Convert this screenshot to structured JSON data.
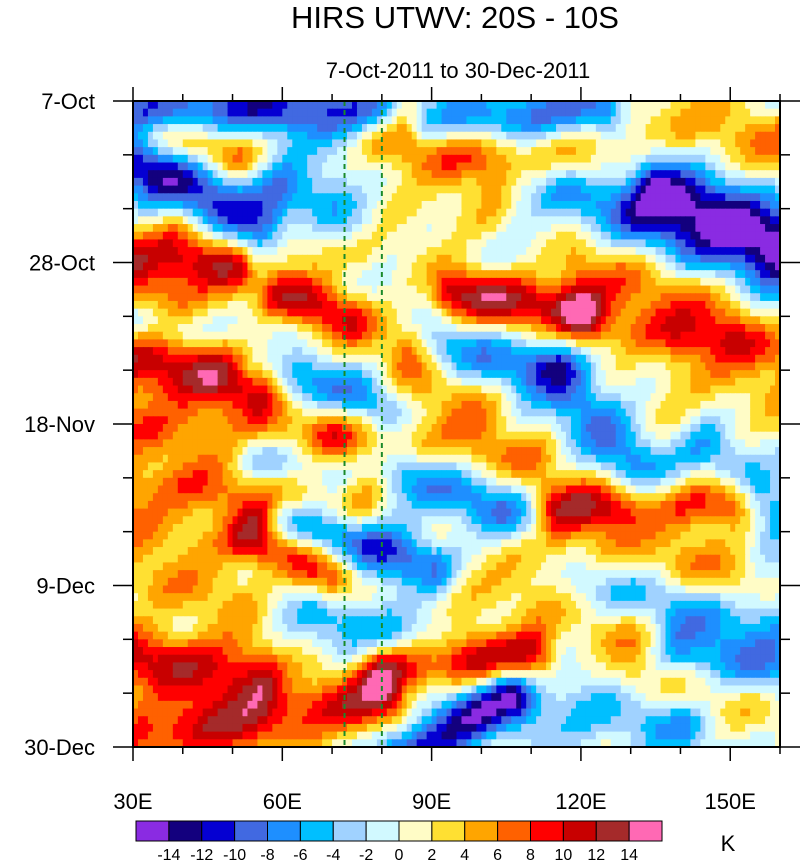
{
  "chart_data": {
    "type": "heatmap",
    "title": "HIRS UTWV: 20S - 10S",
    "subtitle": "7-Oct-2011 to 30-Dec-2011",
    "x_axis": {
      "range": [
        30,
        160
      ],
      "units": "degrees longitude East",
      "ticks": [
        {
          "value": 30,
          "label": "30E"
        },
        {
          "value": 60,
          "label": "60E"
        },
        {
          "value": 90,
          "label": "90E"
        },
        {
          "value": 120,
          "label": "120E"
        },
        {
          "value": 150,
          "label": "150E"
        }
      ]
    },
    "y_axis": {
      "range": [
        0,
        84
      ],
      "units": "days since 7-Oct-2011",
      "direction": "top-to-bottom",
      "ticks": [
        {
          "value": 0,
          "label": "7-Oct"
        },
        {
          "value": 21,
          "label": "28-Oct"
        },
        {
          "value": 42,
          "label": "18-Nov"
        },
        {
          "value": 63,
          "label": "9-Dec"
        },
        {
          "value": 84,
          "label": "30-Dec"
        }
      ]
    },
    "reference_lines": [
      {
        "lon": 72.5,
        "style": "dashed",
        "color": "#1a8a2a"
      },
      {
        "lon": 80,
        "style": "dashed",
        "color": "#1a8a2a"
      }
    ],
    "colorbar": {
      "unit": "K",
      "levels": [
        -14,
        -12,
        -10,
        -8,
        -6,
        -4,
        -2,
        0,
        2,
        4,
        6,
        8,
        10,
        12,
        14
      ],
      "colors": [
        "#8a2be2",
        "#13007e",
        "#0500d2",
        "#4169e1",
        "#1e8fff",
        "#00bfff",
        "#a0d2ff",
        "#d1f9ff",
        "#fffcc6",
        "#ffe032",
        "#ffa500",
        "#ff6100",
        "#ff0000",
        "#c80000",
        "#a52a2a",
        "#ff69b4"
      ],
      "labels": [
        "-14",
        "-12",
        "-10",
        "-8",
        "-6",
        "-4",
        "-2",
        "0",
        "2",
        "4",
        "6",
        "8",
        "10",
        "12",
        "14"
      ]
    },
    "bands": [
      {
        "lon0": 30,
        "day0": 1,
        "lon1": 80,
        "day1": 1,
        "width": 2.5,
        "amp": -10
      },
      {
        "lon0": 85,
        "day0": 3,
        "lon1": 120,
        "day1": 8,
        "width": 3,
        "amp": 6
      },
      {
        "lon0": 90,
        "day0": 3,
        "lon1": 125,
        "day1": 1,
        "width": 2.5,
        "amp": -10
      },
      {
        "lon0": 130,
        "day0": 2,
        "lon1": 160,
        "day1": 6,
        "width": 3,
        "amp": 5
      },
      {
        "lon0": 30,
        "day0": 8,
        "lon1": 55,
        "day1": 17,
        "width": 3,
        "amp": -13
      },
      {
        "lon0": 30,
        "day0": 4,
        "lon1": 50,
        "day1": 7,
        "width": 2,
        "amp": 6
      },
      {
        "lon0": 80,
        "day0": 6,
        "lon1": 110,
        "day1": 9,
        "width": 2.5,
        "amp": 4
      },
      {
        "lon0": 135,
        "day0": 11,
        "lon1": 160,
        "day1": 18,
        "width": 3,
        "amp": -14
      },
      {
        "lon0": 110,
        "day0": 10,
        "lon1": 160,
        "day1": 22,
        "width": 3,
        "amp": -7
      },
      {
        "lon0": 60,
        "day0": 11,
        "lon1": 75,
        "day1": 16,
        "width": 3,
        "amp": -8
      },
      {
        "lon0": 78,
        "day0": 13,
        "lon1": 100,
        "day1": 15,
        "width": 3,
        "amp": 3
      },
      {
        "lon0": 40,
        "day0": 16,
        "lon1": 75,
        "day1": 19,
        "width": 3,
        "amp": 5
      },
      {
        "lon0": 30,
        "day0": 20,
        "lon1": 50,
        "day1": 22,
        "width": 2.5,
        "amp": 10
      },
      {
        "lon0": 30,
        "day0": 24,
        "lon1": 60,
        "day1": 32,
        "width": 2.5,
        "amp": 6
      },
      {
        "lon0": 60,
        "day0": 25,
        "lon1": 85,
        "day1": 31,
        "width": 2.5,
        "amp": 10
      },
      {
        "lon0": 95,
        "day0": 25,
        "lon1": 120,
        "day1": 27,
        "width": 2.5,
        "amp": 12
      },
      {
        "lon0": 120,
        "day0": 22,
        "lon1": 150,
        "day1": 27,
        "width": 3,
        "amp": 5
      },
      {
        "lon0": 30,
        "day0": 29,
        "lon1": 60,
        "day1": 30,
        "width": 2,
        "amp": -5
      },
      {
        "lon0": 80,
        "day0": 30,
        "lon1": 115,
        "day1": 35,
        "width": 2.5,
        "amp": -6
      },
      {
        "lon0": 120,
        "day0": 29,
        "lon1": 160,
        "day1": 32,
        "width": 2.5,
        "amp": 7
      },
      {
        "lon0": 30,
        "day0": 34,
        "lon1": 55,
        "day1": 37,
        "width": 3,
        "amp": 12
      },
      {
        "lon0": 55,
        "day0": 34,
        "lon1": 80,
        "day1": 40,
        "width": 2.5,
        "amp": -7
      },
      {
        "lon0": 85,
        "day0": 35,
        "lon1": 100,
        "day1": 41,
        "width": 3,
        "amp": 4
      },
      {
        "lon0": 115,
        "day0": 34,
        "lon1": 135,
        "day1": 52,
        "width": 3,
        "amp": -7
      },
      {
        "lon0": 140,
        "day0": 35,
        "lon1": 160,
        "day1": 40,
        "width": 3,
        "amp": 4
      },
      {
        "lon0": 30,
        "day0": 42,
        "lon1": 70,
        "day1": 45,
        "width": 3,
        "amp": 6
      },
      {
        "lon0": 70,
        "day0": 42,
        "lon1": 110,
        "day1": 47,
        "width": 2.5,
        "amp": 5
      },
      {
        "lon0": 55,
        "day0": 46,
        "lon1": 70,
        "day1": 48,
        "width": 2.5,
        "amp": -6
      },
      {
        "lon0": 85,
        "day0": 49,
        "lon1": 110,
        "day1": 55,
        "width": 2.5,
        "amp": -8
      },
      {
        "lon0": 115,
        "day0": 53,
        "lon1": 150,
        "day1": 52,
        "width": 2.5,
        "amp": 11
      },
      {
        "lon0": 30,
        "day0": 50,
        "lon1": 75,
        "day1": 52,
        "width": 2.5,
        "amp": 6
      },
      {
        "lon0": 60,
        "day0": 55,
        "lon1": 90,
        "day1": 61,
        "width": 2.5,
        "amp": -10
      },
      {
        "lon0": 30,
        "day0": 55,
        "lon1": 55,
        "day1": 58,
        "width": 2.5,
        "amp": 5
      },
      {
        "lon0": 55,
        "day0": 56,
        "lon1": 70,
        "day1": 62,
        "width": 2.5,
        "amp": 10
      },
      {
        "lon0": 110,
        "day0": 56,
        "lon1": 150,
        "day1": 62,
        "width": 3,
        "amp": 5
      },
      {
        "lon0": 145,
        "day0": 45,
        "lon1": 160,
        "day1": 53,
        "width": 2.5,
        "amp": -7
      },
      {
        "lon0": 30,
        "day0": 62,
        "lon1": 60,
        "day1": 66,
        "width": 3,
        "amp": 4
      },
      {
        "lon0": 90,
        "day0": 62,
        "lon1": 130,
        "day1": 70,
        "width": 3,
        "amp": 4
      },
      {
        "lon0": 120,
        "day0": 63,
        "lon1": 160,
        "day1": 68,
        "width": 3,
        "amp": -5
      },
      {
        "lon0": 60,
        "day0": 66,
        "lon1": 90,
        "day1": 70,
        "width": 3,
        "amp": -5
      },
      {
        "lon0": 30,
        "day0": 72,
        "lon1": 55,
        "day1": 75,
        "width": 3,
        "amp": 11
      },
      {
        "lon0": 80,
        "day0": 74,
        "lon1": 110,
        "day1": 72,
        "width": 2.5,
        "amp": 11
      },
      {
        "lon0": 140,
        "day0": 72,
        "lon1": 160,
        "day1": 75,
        "width": 3,
        "amp": -7
      },
      {
        "lon0": 30,
        "day0": 83,
        "lon1": 80,
        "day1": 78,
        "width": 3,
        "amp": 10
      },
      {
        "lon0": 85,
        "day0": 85,
        "lon1": 105,
        "day1": 77,
        "width": 2.5,
        "amp": -13
      },
      {
        "lon0": 110,
        "day0": 78,
        "lon1": 140,
        "day1": 82,
        "width": 3,
        "amp": -5
      },
      {
        "lon0": 130,
        "day0": 75,
        "lon1": 160,
        "day1": 78,
        "width": 2.5,
        "amp": 4
      }
    ]
  }
}
